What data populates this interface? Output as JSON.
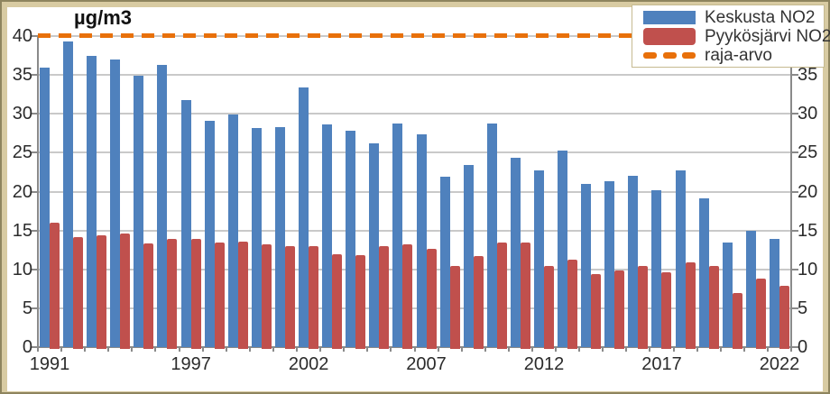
{
  "chart_data": {
    "type": "bar",
    "title": "µg/m3",
    "ylabel": "",
    "xlabel": "",
    "ylim": [
      0,
      40
    ],
    "ytick_interval": 5,
    "grid": true,
    "legend_position": "top-right",
    "years": [
      1991,
      1992,
      1993,
      1994,
      1995,
      1996,
      1997,
      1998,
      1999,
      2000,
      2001,
      2002,
      2003,
      2004,
      2005,
      2006,
      2007,
      2008,
      2009,
      2010,
      2011,
      2012,
      2013,
      2014,
      2015,
      2016,
      2017,
      2018,
      2019,
      2020,
      2021,
      2022
    ],
    "xtick_label_years": [
      1991,
      1997,
      2002,
      2007,
      2012,
      2017,
      2022
    ],
    "series": [
      {
        "name": "Keskusta NO2",
        "color": "#4f81bd",
        "values": [
          35.9,
          39.3,
          37.5,
          37.0,
          34.9,
          36.3,
          31.8,
          29.1,
          29.9,
          28.2,
          28.3,
          33.4,
          28.6,
          27.8,
          26.2,
          28.7,
          27.4,
          21.9,
          23.4,
          28.8,
          24.3,
          22.7,
          25.3,
          21.0,
          21.3,
          22.0,
          20.2,
          22.7,
          19.1,
          13.4,
          14.9,
          13.9
        ]
      },
      {
        "name": "Pyykösjärvi NO2",
        "color": "#c0504d",
        "values": [
          16.0,
          14.1,
          14.4,
          14.6,
          13.3,
          13.9,
          13.9,
          13.4,
          13.6,
          13.2,
          13.0,
          13.0,
          11.9,
          11.8,
          13.0,
          13.2,
          12.6,
          10.4,
          11.7,
          13.4,
          13.5,
          10.4,
          11.3,
          9.4,
          9.9,
          10.4,
          9.6,
          10.9,
          10.4,
          6.9,
          8.8,
          7.9
        ]
      }
    ],
    "limit_line": {
      "name": "raja-arvo",
      "value": 40,
      "color": "#e8700a",
      "style": "dashed"
    }
  },
  "colors": {
    "grid": "#c9c9c9",
    "axis": "#8a8a8a",
    "label": "#2b2b2b",
    "frame_outer": "#8e845e",
    "frame_inner": "#d8cba2",
    "background": "#ffffff"
  }
}
